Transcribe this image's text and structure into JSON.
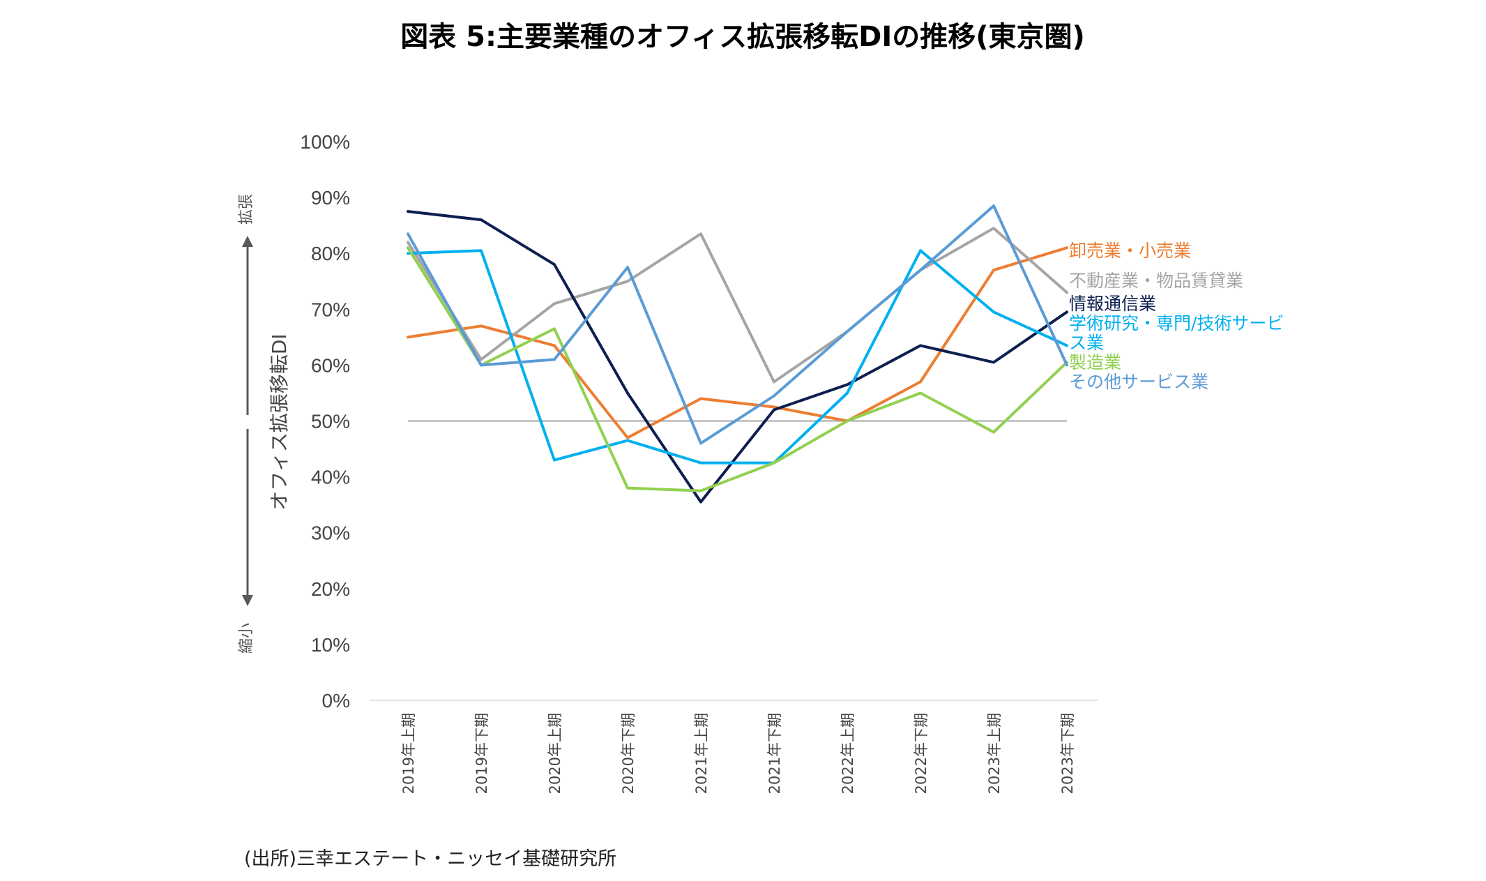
{
  "chart_data": {
    "type": "line",
    "title": "図表 5:主要業種のオフィス拡張移転DIの推移(東京圏)",
    "ylabel": "オフィス拡張移転DI",
    "side_label_up": "拡張",
    "side_label_down": "縮小",
    "ylim": [
      0,
      100
    ],
    "yticks": [
      "0%",
      "10%",
      "20%",
      "30%",
      "40%",
      "50%",
      "60%",
      "70%",
      "80%",
      "90%",
      "100%"
    ],
    "categories": [
      "2019年上期",
      "2019年下期",
      "2020年上期",
      "2020年下期",
      "2021年上期",
      "2021年下期",
      "2022年上期",
      "2022年下期",
      "2023年上期",
      "2023年下期"
    ],
    "reference_line": 50,
    "reference_color": "#a6a6a6",
    "legend_placement": "right",
    "series": [
      {
        "name": "卸売業・小売業",
        "color": "#ed7d31",
        "values": [
          65,
          67,
          63.5,
          47,
          54,
          52.5,
          50,
          57,
          77,
          81
        ]
      },
      {
        "name": "不動産業・物品賃貸業",
        "color": "#a5a5a5",
        "values": [
          82,
          61,
          71,
          75,
          83.5,
          57,
          66,
          77,
          84.5,
          73
        ]
      },
      {
        "name": "情報通信業",
        "color": "#0d1f4f",
        "values": [
          87.5,
          86,
          78,
          55,
          35.5,
          52,
          56.5,
          63.5,
          60.5,
          69.5
        ]
      },
      {
        "name": "学術研究・専門/技術サービス業",
        "color": "#00b0f0",
        "values": [
          80,
          80.5,
          43,
          46.5,
          42.5,
          42.5,
          55,
          80.5,
          69.5,
          63.5
        ]
      },
      {
        "name": "製造業",
        "color": "#92d050",
        "values": [
          81,
          60,
          66.5,
          38,
          37.5,
          42.5,
          50,
          55,
          48,
          60.5
        ]
      },
      {
        "name": "その他サービス業",
        "color": "#5b9bd5",
        "values": [
          83.5,
          60,
          61,
          77.5,
          46,
          54.5,
          66,
          77,
          88.5,
          60
        ]
      }
    ]
  },
  "source": "(出所)三幸エステート・ニッセイ基礎研究所"
}
